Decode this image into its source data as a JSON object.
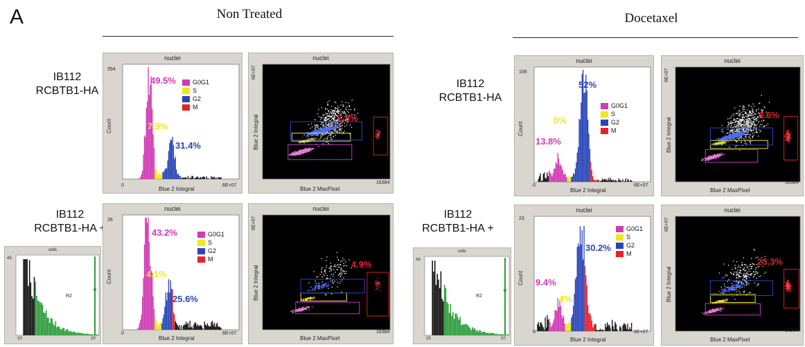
{
  "panel_letter": "A",
  "groups": [
    {
      "title": "Non Treated"
    },
    {
      "title": "Docetaxel"
    }
  ],
  "row_labels": [
    [
      "IB112",
      "RCBTB1-HA"
    ],
    [
      "IB112",
      "RCBTB1-HA +"
    ],
    [
      "IB112",
      "RCBTB1-HA"
    ],
    [
      "IB112",
      "RCBTB1-HA +"
    ]
  ],
  "colors": {
    "G0G1": "#d23ab4",
    "S": "#f0e81a",
    "G2": "#2a46b8",
    "M": "#e8202a"
  },
  "legend_labels": [
    "G0G1",
    "S",
    "G2",
    "M"
  ],
  "hist_common": {
    "title": "nuclei",
    "xlabel": "Blue 2 Integral",
    "ylabel": "Count",
    "x_min": "0",
    "x_max": "6E+07"
  },
  "scatter_common": {
    "title": "nuclei",
    "xlabel": "Blue 2 MaxPixel",
    "ylabel": "Blue 2 Integral",
    "x_max": "16384",
    "y_max": "6E+07"
  },
  "cells_common": {
    "title": "cells",
    "x_min": "10",
    "x_max": "10"
  },
  "chart_data": [
    {
      "type": "bar",
      "name": "nt-top-hist",
      "ymax_label": "354",
      "phases": {
        "G0G1": "49.5%",
        "S": "7.9%",
        "G2": "31.4%"
      }
    },
    {
      "type": "scatter",
      "name": "nt-top-scatter",
      "M": "2.8%",
      "gates": [
        "R4",
        "R6",
        "R5"
      ]
    },
    {
      "type": "bar",
      "name": "nt-bottom-hist",
      "ymax_label": "26",
      "phases": {
        "G0G1": "43.2%",
        "S": "4.1%",
        "G2": "25.6%"
      }
    },
    {
      "type": "scatter",
      "name": "nt-bottom-scatter",
      "M": "4.9%",
      "gates": [
        "R8",
        "R10",
        "R11"
      ]
    },
    {
      "type": "bar",
      "name": "doc-top-hist",
      "ymax_label": "156",
      "phases": {
        "G0G1": "13.8%",
        "S": "0%",
        "G2": "52%"
      }
    },
    {
      "type": "scatter",
      "name": "doc-top-scatter",
      "M": "8.6%",
      "gates": [
        "R1",
        "R2",
        "R3"
      ]
    },
    {
      "type": "bar",
      "name": "doc-bottom-hist",
      "ymax_label": "23",
      "phases": {
        "G0G1": "9.4%",
        "S": "4%",
        "G2": "30.2%"
      }
    },
    {
      "type": "scatter",
      "name": "doc-bottom-scatter",
      "M": "23.3%",
      "gates": [
        "R4",
        "R10",
        "R11",
        "R7"
      ]
    },
    {
      "type": "bar",
      "name": "nt-cells-hist",
      "ymax_label": "43",
      "gate": "R2"
    },
    {
      "type": "bar",
      "name": "doc-cells-hist",
      "ymax_label": "43",
      "gate": "R2"
    }
  ]
}
